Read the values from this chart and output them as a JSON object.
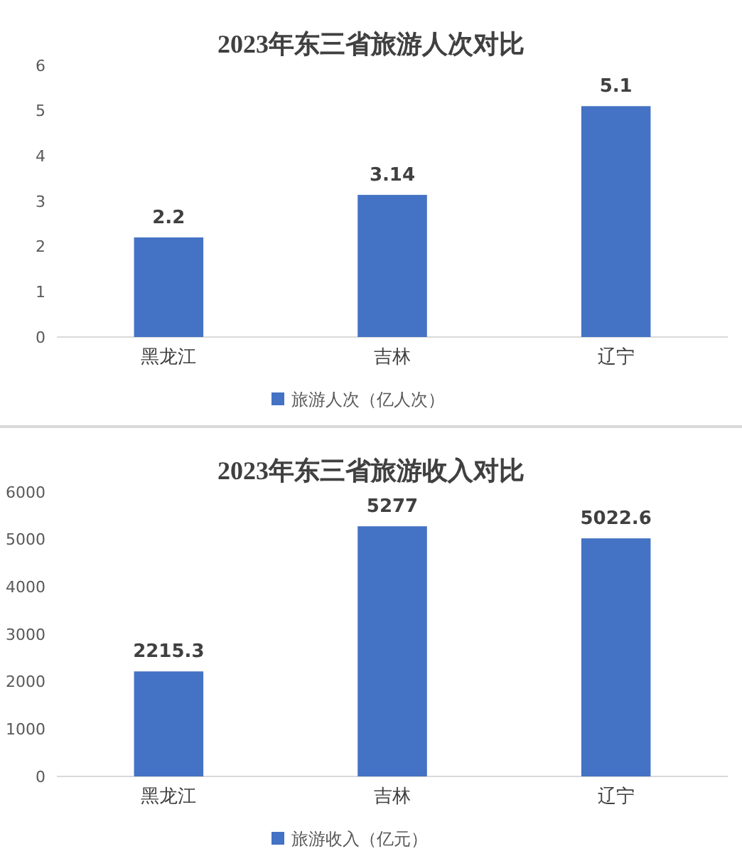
{
  "chart_data": [
    {
      "type": "bar",
      "title": "2023年东三省旅游人次对比",
      "categories": [
        "黑龙江",
        "吉林",
        "辽宁"
      ],
      "series": [
        {
          "name": "旅游人次（亿人次）",
          "color": "#4472c4",
          "values": [
            2.2,
            3.14,
            5.1
          ]
        }
      ],
      "ylim": [
        0,
        6
      ],
      "yticks": [
        0,
        1,
        2,
        3,
        4,
        5,
        6
      ],
      "grid": false,
      "legend": "bottom",
      "data_labels": true
    },
    {
      "type": "bar",
      "title": "2023年东三省旅游收入对比",
      "categories": [
        "黑龙江",
        "吉林",
        "辽宁"
      ],
      "series": [
        {
          "name": "旅游收入（亿元）",
          "color": "#4472c4",
          "values": [
            2215.3,
            5277,
            5022.6
          ]
        }
      ],
      "ylim": [
        0,
        6000
      ],
      "yticks": [
        0,
        1000,
        2000,
        3000,
        4000,
        5000,
        6000
      ],
      "grid": false,
      "legend": "bottom",
      "data_labels": true
    }
  ]
}
